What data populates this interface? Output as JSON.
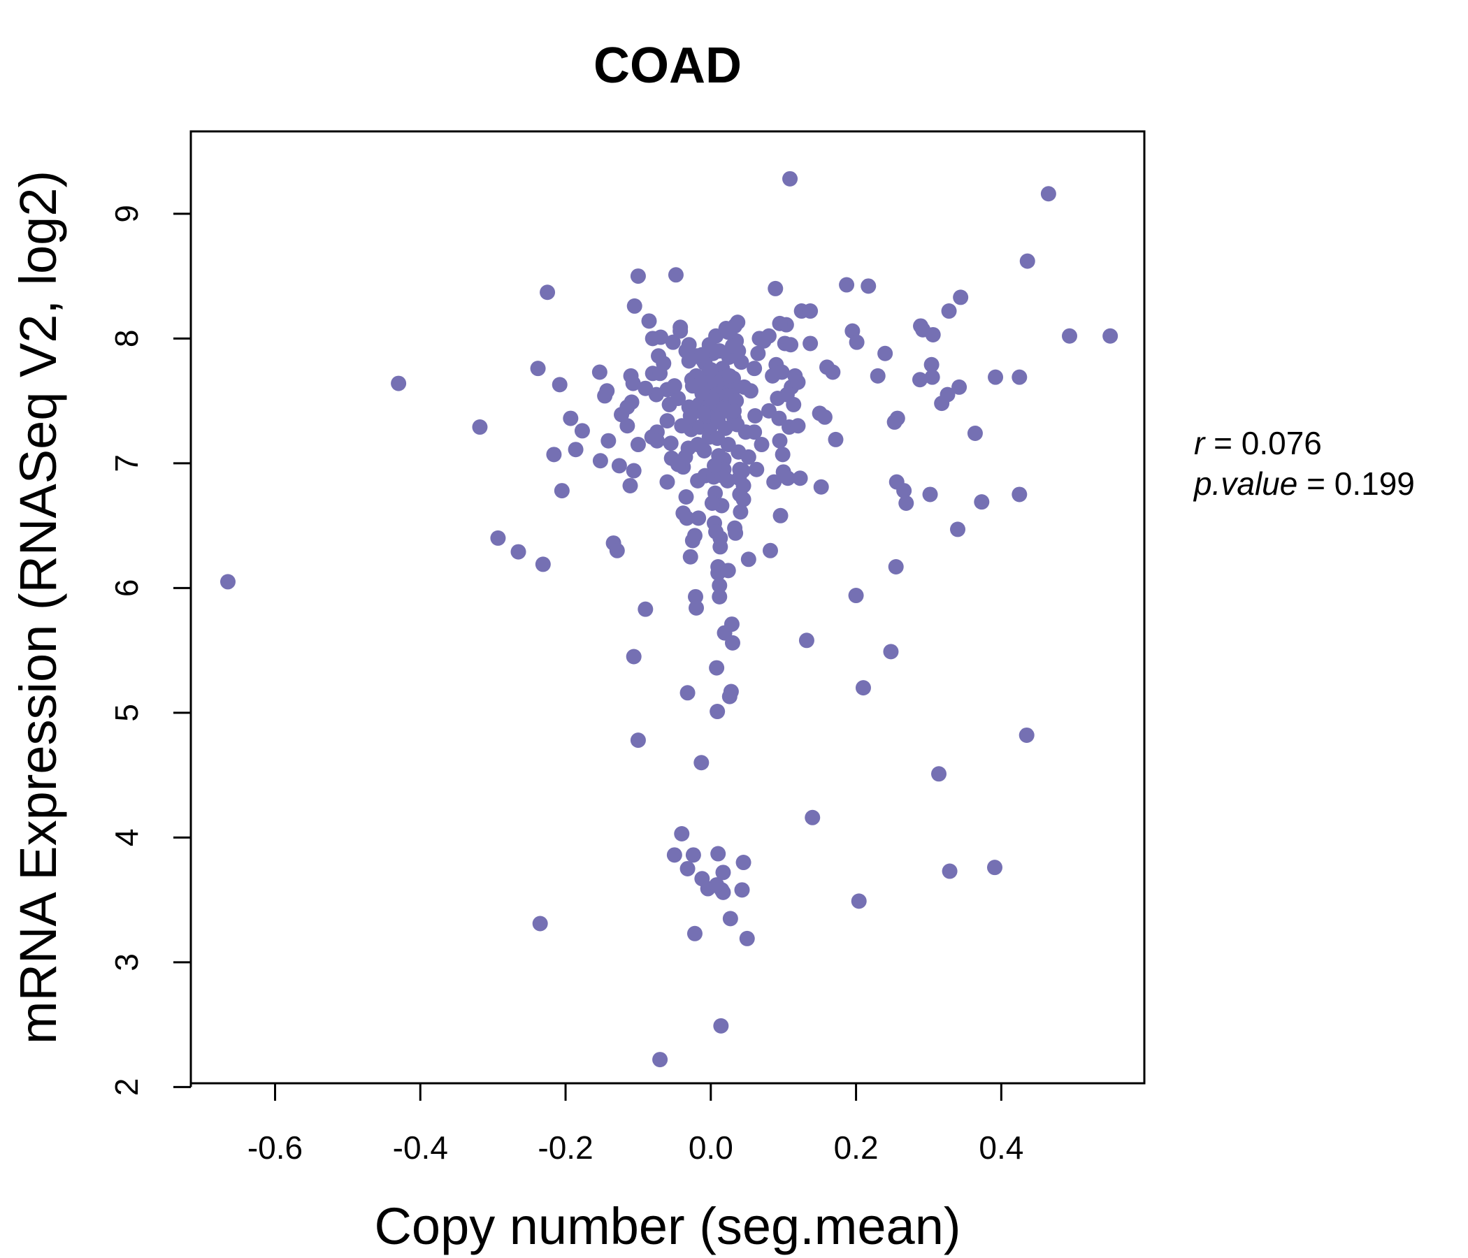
{
  "chart_data": {
    "type": "scatter",
    "title": "COAD",
    "xlabel": "Copy number (seg.mean)",
    "ylabel": "mRNA Expression (RNASeq V2, log2)",
    "xlim": [
      -0.716,
      0.597
    ],
    "ylim": [
      2.03,
      9.66
    ],
    "x_ticks": [
      -0.6,
      -0.4,
      -0.2,
      0.0,
      0.2,
      0.4
    ],
    "x_tick_labels": [
      "-0.6",
      "-0.4",
      "-0.2",
      "0.0",
      "0.2",
      "0.4"
    ],
    "y_ticks": [
      2,
      3,
      4,
      5,
      6,
      7,
      8,
      9
    ],
    "y_tick_labels": [
      "2",
      "3",
      "4",
      "5",
      "6",
      "7",
      "8",
      "9"
    ],
    "grid": false,
    "colors": {
      "title": "#7570b3",
      "points": "#7570b3",
      "axis": "#000000"
    },
    "stats": {
      "r_label": "r",
      "r_value": "0.076",
      "p_label": "p.value",
      "p_value": "0.199"
    },
    "points": [
      [
        -0.665,
        6.05
      ],
      [
        -0.43,
        7.64
      ],
      [
        -0.318,
        7.29
      ],
      [
        -0.293,
        6.4
      ],
      [
        -0.265,
        6.29
      ],
      [
        -0.238,
        7.76
      ],
      [
        -0.235,
        3.31
      ],
      [
        -0.231,
        6.19
      ],
      [
        -0.225,
        8.37
      ],
      [
        -0.216,
        7.07
      ],
      [
        -0.208,
        7.63
      ],
      [
        -0.205,
        6.78
      ],
      [
        -0.193,
        7.36
      ],
      [
        -0.186,
        7.11
      ],
      [
        -0.177,
        7.26
      ],
      [
        -0.153,
        7.73
      ],
      [
        -0.152,
        7.02
      ],
      [
        -0.146,
        7.54
      ],
      [
        -0.143,
        7.58
      ],
      [
        -0.141,
        7.18
      ],
      [
        -0.134,
        6.36
      ],
      [
        -0.129,
        6.3
      ],
      [
        -0.126,
        6.98
      ],
      [
        -0.123,
        7.39
      ],
      [
        -0.115,
        7.3
      ],
      [
        -0.111,
        6.82
      ],
      [
        -0.11,
        7.7
      ],
      [
        -0.109,
        7.49
      ],
      [
        -0.107,
        7.64
      ],
      [
        -0.106,
        6.94
      ],
      [
        -0.105,
        8.26
      ],
      [
        -0.106,
        5.45
      ],
      [
        -0.1,
        8.5
      ],
      [
        -0.1,
        4.78
      ],
      [
        -0.09,
        5.83
      ],
      [
        -0.085,
        8.14
      ],
      [
        -0.081,
        7.21
      ],
      [
        -0.08,
        7.72
      ],
      [
        -0.074,
        7.25
      ],
      [
        -0.074,
        7.18
      ],
      [
        -0.072,
        7.86
      ],
      [
        -0.07,
        7.72
      ],
      [
        -0.069,
        8.01
      ],
      [
        -0.07,
        2.22
      ],
      [
        -0.06,
        7.59
      ],
      [
        -0.057,
        7.47
      ],
      [
        -0.055,
        7.16
      ],
      [
        -0.054,
        7.04
      ],
      [
        -0.052,
        7.97
      ],
      [
        -0.048,
        8.51
      ],
      [
        -0.042,
        8.09
      ],
      [
        -0.042,
        8.06
      ],
      [
        -0.04,
        4.03
      ],
      [
        -0.038,
        6.97
      ],
      [
        -0.034,
        7.9
      ],
      [
        -0.034,
        6.73
      ],
      [
        -0.033,
        6.56
      ],
      [
        -0.032,
        5.16
      ],
      [
        -0.031,
        7.12
      ],
      [
        -0.03,
        7.82
      ],
      [
        -0.028,
        6.25
      ],
      [
        -0.027,
        7.27
      ],
      [
        -0.026,
        7.67
      ],
      [
        -0.025,
        6.38
      ],
      [
        -0.024,
        3.86
      ],
      [
        -0.022,
        3.23
      ],
      [
        -0.021,
        5.93
      ],
      [
        -0.02,
        5.84
      ],
      [
        -0.019,
        7.86
      ],
      [
        -0.018,
        6.86
      ],
      [
        -0.017,
        6.56
      ],
      [
        -0.016,
        7.47
      ],
      [
        -0.015,
        7.29
      ],
      [
        -0.014,
        7.6
      ],
      [
        -0.013,
        4.6
      ],
      [
        -0.012,
        3.67
      ],
      [
        -0.01,
        7.82
      ],
      [
        -0.009,
        7.1
      ],
      [
        -0.008,
        6.9
      ],
      [
        -0.007,
        7.56
      ],
      [
        -0.005,
        7.7
      ],
      [
        -0.004,
        3.59
      ],
      [
        -0.003,
        7.45
      ],
      [
        -0.002,
        7.21
      ],
      [
        0.0,
        7.3
      ],
      [
        0.002,
        7.64
      ],
      [
        0.003,
        7.88
      ],
      [
        0.004,
        6.89
      ],
      [
        0.005,
        6.52
      ],
      [
        0.006,
        6.76
      ],
      [
        0.007,
        8.02
      ],
      [
        0.007,
        6.45
      ],
      [
        0.008,
        5.36
      ],
      [
        0.009,
        7.41
      ],
      [
        0.009,
        5.01
      ],
      [
        0.01,
        6.17
      ],
      [
        0.01,
        6.12
      ],
      [
        0.01,
        3.87
      ],
      [
        0.011,
        7.06
      ],
      [
        0.012,
        6.02
      ],
      [
        0.012,
        5.93
      ],
      [
        0.013,
        6.33
      ],
      [
        0.014,
        7.53
      ],
      [
        0.014,
        2.49
      ],
      [
        0.015,
        6.66
      ],
      [
        0.016,
        7.76
      ],
      [
        0.017,
        3.72
      ],
      [
        0.017,
        3.56
      ],
      [
        0.018,
        7.03
      ],
      [
        0.019,
        5.64
      ],
      [
        0.02,
        7.42
      ],
      [
        0.021,
        8.08
      ],
      [
        0.022,
        7.55
      ],
      [
        0.023,
        6.86
      ],
      [
        0.024,
        6.14
      ],
      [
        0.025,
        7.85
      ],
      [
        0.026,
        5.13
      ],
      [
        0.027,
        3.35
      ],
      [
        0.028,
        5.17
      ],
      [
        0.029,
        5.71
      ],
      [
        0.03,
        5.56
      ],
      [
        0.031,
        7.68
      ],
      [
        0.032,
        7.36
      ],
      [
        0.033,
        6.48
      ],
      [
        0.034,
        6.44
      ],
      [
        0.035,
        7.98
      ],
      [
        0.036,
        7.31
      ],
      [
        0.037,
        8.13
      ],
      [
        0.038,
        7.09
      ],
      [
        0.039,
        6.88
      ],
      [
        0.04,
        6.75
      ],
      [
        0.041,
        6.61
      ],
      [
        0.042,
        7.81
      ],
      [
        0.043,
        3.58
      ],
      [
        0.044,
        6.94
      ],
      [
        0.045,
        6.71
      ],
      [
        0.046,
        7.61
      ],
      [
        0.05,
        3.19
      ],
      [
        0.052,
        6.23
      ],
      [
        0.06,
        7.76
      ],
      [
        0.061,
        7.38
      ],
      [
        0.063,
        6.95
      ],
      [
        0.065,
        7.88
      ],
      [
        0.067,
        8.0
      ],
      [
        0.073,
        7.98
      ],
      [
        0.08,
        8.02
      ],
      [
        0.082,
        6.3
      ],
      [
        0.087,
        6.85
      ],
      [
        0.089,
        8.4
      ],
      [
        0.09,
        7.79
      ],
      [
        0.092,
        7.52
      ],
      [
        0.094,
        7.36
      ],
      [
        0.096,
        6.58
      ],
      [
        0.098,
        7.73
      ],
      [
        0.099,
        7.07
      ],
      [
        0.1,
        6.93
      ],
      [
        0.102,
        7.96
      ],
      [
        0.104,
        8.11
      ],
      [
        0.106,
        6.88
      ],
      [
        0.108,
        7.29
      ],
      [
        0.109,
        9.28
      ],
      [
        0.111,
        7.61
      ],
      [
        0.114,
        7.47
      ],
      [
        0.116,
        7.7
      ],
      [
        0.12,
        7.3
      ],
      [
        0.123,
        6.88
      ],
      [
        0.125,
        8.22
      ],
      [
        0.132,
        5.58
      ],
      [
        0.137,
        8.22
      ],
      [
        0.137,
        7.96
      ],
      [
        0.14,
        4.16
      ],
      [
        0.15,
        7.4
      ],
      [
        0.152,
        6.81
      ],
      [
        0.157,
        7.37
      ],
      [
        0.16,
        7.77
      ],
      [
        0.168,
        7.73
      ],
      [
        0.172,
        7.19
      ],
      [
        0.187,
        8.43
      ],
      [
        0.195,
        8.06
      ],
      [
        0.201,
        7.97
      ],
      [
        0.2,
        5.94
      ],
      [
        0.204,
        3.49
      ],
      [
        0.21,
        5.2
      ],
      [
        0.217,
        8.42
      ],
      [
        0.23,
        7.7
      ],
      [
        0.24,
        7.88
      ],
      [
        0.248,
        5.49
      ],
      [
        0.253,
        7.33
      ],
      [
        0.255,
        6.17
      ],
      [
        0.256,
        6.85
      ],
      [
        0.257,
        7.36
      ],
      [
        0.266,
        6.78
      ],
      [
        0.269,
        6.68
      ],
      [
        0.288,
        7.67
      ],
      [
        0.289,
        8.1
      ],
      [
        0.292,
        8.07
      ],
      [
        0.302,
        6.75
      ],
      [
        0.304,
        7.79
      ],
      [
        0.305,
        7.69
      ],
      [
        0.306,
        8.03
      ],
      [
        0.314,
        4.51
      ],
      [
        0.318,
        7.48
      ],
      [
        0.326,
        7.55
      ],
      [
        0.328,
        8.22
      ],
      [
        0.329,
        3.73
      ],
      [
        0.34,
        6.47
      ],
      [
        0.342,
        7.61
      ],
      [
        0.344,
        8.33
      ],
      [
        0.364,
        7.24
      ],
      [
        0.373,
        6.69
      ],
      [
        0.392,
        7.69
      ],
      [
        0.391,
        3.76
      ],
      [
        0.425,
        7.69
      ],
      [
        0.425,
        6.75
      ],
      [
        0.436,
        8.62
      ],
      [
        0.435,
        4.82
      ],
      [
        0.465,
        9.16
      ],
      [
        0.494,
        8.02
      ],
      [
        0.55,
        8.02
      ],
      [
        -0.015,
        7.65
      ],
      [
        0.005,
        7.45
      ],
      [
        0.018,
        7.6
      ],
      [
        0.012,
        7.5
      ],
      [
        -0.005,
        7.38
      ],
      [
        0.025,
        7.48
      ],
      [
        0.008,
        7.55
      ],
      [
        -0.01,
        7.4
      ],
      [
        0.015,
        7.68
      ],
      [
        0.002,
        7.52
      ],
      [
        0.022,
        7.44
      ],
      [
        -0.02,
        7.7
      ],
      [
        0.03,
        7.58
      ],
      [
        -0.008,
        7.8
      ],
      [
        0.01,
        7.35
      ],
      [
        0.035,
        7.5
      ],
      [
        -0.025,
        7.62
      ],
      [
        0.02,
        7.28
      ],
      [
        0.0,
        7.75
      ],
      [
        0.028,
        7.66
      ],
      [
        -0.035,
        7.05
      ],
      [
        0.038,
        7.9
      ],
      [
        -0.045,
        7.52
      ],
      [
        0.048,
        7.25
      ],
      [
        0.055,
        7.58
      ],
      [
        -0.06,
        7.34
      ],
      [
        0.07,
        7.15
      ],
      [
        -0.075,
        7.55
      ],
      [
        0.08,
        7.42
      ],
      [
        -0.09,
        7.6
      ],
      [
        0.095,
        7.18
      ],
      [
        -0.1,
        7.15
      ],
      [
        0.105,
        7.55
      ],
      [
        -0.115,
        7.45
      ],
      [
        0.12,
        7.65
      ],
      [
        -0.045,
        6.99
      ],
      [
        0.04,
        6.95
      ],
      [
        -0.03,
        7.45
      ],
      [
        0.06,
        7.25
      ],
      [
        -0.06,
        6.85
      ],
      [
        0.016,
        6.9
      ],
      [
        -0.002,
        7.95
      ],
      [
        0.012,
        7.9
      ],
      [
        0.024,
        7.15
      ],
      [
        -0.018,
        7.15
      ],
      [
        0.009,
        7.2
      ],
      [
        0.026,
        7.7
      ],
      [
        -0.012,
        7.56
      ],
      [
        0.032,
        7.42
      ],
      [
        -0.028,
        7.38
      ],
      [
        0.013,
        6.4
      ],
      [
        0.018,
        6.95
      ],
      [
        0.005,
        6.98
      ],
      [
        -0.04,
        7.3
      ],
      [
        -0.05,
        7.62
      ],
      [
        0.052,
        7.05
      ],
      [
        -0.038,
        6.6
      ],
      [
        0.045,
        6.82
      ],
      [
        0.002,
        6.68
      ],
      [
        -0.022,
        6.42
      ],
      [
        0.11,
        7.95
      ],
      [
        0.095,
        8.12
      ],
      [
        0.085,
        7.7
      ],
      [
        -0.08,
        8.0
      ],
      [
        -0.065,
        7.8
      ],
      [
        0.03,
        7.94
      ],
      [
        0.033,
        8.1
      ],
      [
        0.024,
        8.05
      ],
      [
        -0.03,
        7.95
      ],
      [
        -0.012,
        7.87
      ],
      [
        0.015,
        3.58
      ],
      [
        -0.032,
        3.75
      ],
      [
        0.045,
        3.8
      ],
      [
        -0.05,
        3.86
      ],
      [
        0.008,
        3.62
      ]
    ]
  }
}
